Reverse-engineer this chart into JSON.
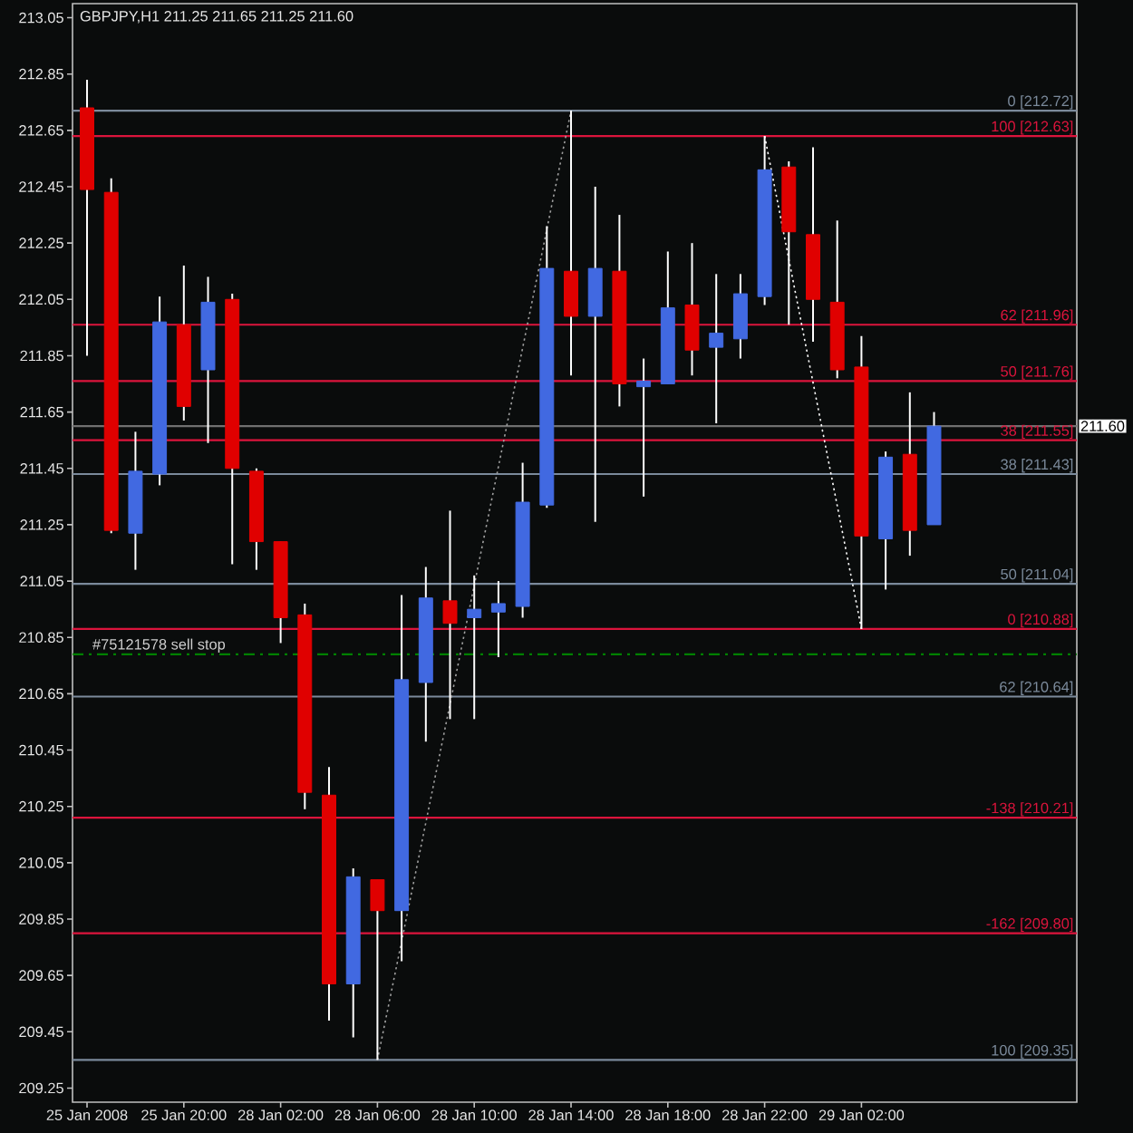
{
  "chart_data": {
    "type": "candlestick",
    "title": "GBPJPY,H1 211.25 211.65 211.25 211.60",
    "categories": [
      "25 Jan 2008",
      null,
      null,
      null,
      "25 Jan 20:00",
      null,
      null,
      null,
      "28 Jan 02:00",
      null,
      null,
      null,
      "28 Jan 06:00",
      null,
      null,
      null,
      "28 Jan 10:00",
      null,
      null,
      null,
      "28 Jan 14:00",
      null,
      null,
      null,
      "28 Jan 18:00",
      null,
      null,
      null,
      "28 Jan 22:00",
      null,
      null,
      null,
      "29 Jan 02:00",
      null,
      null,
      null
    ],
    "ohlc": [
      [
        212.73,
        212.83,
        211.85,
        212.44
      ],
      [
        212.43,
        212.48,
        211.22,
        211.23
      ],
      [
        211.22,
        211.58,
        211.09,
        211.44
      ],
      [
        211.43,
        212.06,
        211.39,
        211.97
      ],
      [
        211.96,
        212.17,
        211.62,
        211.67
      ],
      [
        211.8,
        212.13,
        211.54,
        212.04
      ],
      [
        212.05,
        212.07,
        211.11,
        211.45
      ],
      [
        211.44,
        211.45,
        211.09,
        211.19
      ],
      [
        211.19,
        211.19,
        210.83,
        210.92
      ],
      [
        210.93,
        210.97,
        210.24,
        210.3
      ],
      [
        210.29,
        210.39,
        209.49,
        209.62
      ],
      [
        209.62,
        210.03,
        209.43,
        210.0
      ],
      [
        209.99,
        209.99,
        209.35,
        209.88
      ],
      [
        209.88,
        211.0,
        209.7,
        210.7
      ],
      [
        210.69,
        211.1,
        210.48,
        210.99
      ],
      [
        210.98,
        211.3,
        210.56,
        210.9
      ],
      [
        210.92,
        211.07,
        210.56,
        210.95
      ],
      [
        210.94,
        211.05,
        210.78,
        210.97
      ],
      [
        210.96,
        211.47,
        210.92,
        211.33
      ],
      [
        211.32,
        212.31,
        211.31,
        212.16
      ],
      [
        212.15,
        212.72,
        211.78,
        211.99
      ],
      [
        211.99,
        212.45,
        211.26,
        212.16
      ],
      [
        212.15,
        212.35,
        211.67,
        211.75
      ],
      [
        211.74,
        211.84,
        211.35,
        211.76
      ],
      [
        211.75,
        212.22,
        211.75,
        212.02
      ],
      [
        212.03,
        212.25,
        211.78,
        211.87
      ],
      [
        211.88,
        212.14,
        211.61,
        211.93
      ],
      [
        211.91,
        212.14,
        211.84,
        212.07
      ],
      [
        212.06,
        212.63,
        212.03,
        212.51
      ],
      [
        212.52,
        212.54,
        211.96,
        212.29
      ],
      [
        212.28,
        212.59,
        211.9,
        212.05
      ],
      [
        212.04,
        212.33,
        211.77,
        211.8
      ],
      [
        211.81,
        211.92,
        210.88,
        211.21
      ],
      [
        211.2,
        211.51,
        211.02,
        211.49
      ],
      [
        211.5,
        211.72,
        211.14,
        211.23
      ],
      [
        211.25,
        211.65,
        211.25,
        211.6
      ]
    ],
    "colors": [
      "#e00000",
      "#e00000",
      "#4169e1",
      "#4169e1",
      "#e00000",
      "#4169e1",
      "#e00000",
      "#e00000",
      "#e00000",
      "#e00000",
      "#e00000",
      "#4169e1",
      "#e00000",
      "#4169e1",
      "#4169e1",
      "#e00000",
      "#4169e1",
      "#4169e1",
      "#4169e1",
      "#4169e1",
      "#e00000",
      "#4169e1",
      "#e00000",
      "#4169e1",
      "#4169e1",
      "#e00000",
      "#4169e1",
      "#4169e1",
      "#4169e1",
      "#e00000",
      "#e00000",
      "#e00000",
      "#e00000",
      "#4169e1",
      "#e00000",
      "#4169e1"
    ],
    "ylim": [
      209.2,
      213.1
    ],
    "yticks": [
      209.25,
      209.45,
      209.65,
      209.85,
      210.05,
      210.25,
      210.45,
      210.65,
      210.85,
      211.05,
      211.25,
      211.45,
      211.65,
      211.85,
      212.05,
      212.25,
      212.45,
      212.65,
      212.85,
      213.05
    ],
    "series": [
      {
        "type": "line",
        "x": [
          "28 Jan 06:00",
          "28 Jan 14:00"
        ],
        "values": [
          209.35,
          212.72
        ],
        "color": "#a0a0a0",
        "line_style": "dotted"
      },
      {
        "type": "line",
        "x": [
          "28 Jan 22:00",
          "29 Jan 02:00"
        ],
        "values": [
          212.63,
          210.88
        ],
        "color": "#ffffff",
        "line_style": "dotted"
      }
    ],
    "ref_lines": [
      {
        "axis": "y",
        "value": 212.72,
        "label": "0 [212.72]",
        "color": "#7b8a9b"
      },
      {
        "axis": "y",
        "value": 211.43,
        "label": "38 [211.43]",
        "color": "#7b8a9b"
      },
      {
        "axis": "y",
        "value": 211.04,
        "label": "50 [211.04]",
        "color": "#7b8a9b"
      },
      {
        "axis": "y",
        "value": 210.64,
        "label": "62 [210.64]",
        "color": "#7b8a9b"
      },
      {
        "axis": "y",
        "value": 209.35,
        "label": "100 [209.35]",
        "color": "#7b8a9b"
      },
      {
        "axis": "y",
        "value": 212.63,
        "label": "100 [212.63]",
        "color": "#dc143c"
      },
      {
        "axis": "y",
        "value": 211.96,
        "label": "62 [211.96]",
        "color": "#dc143c"
      },
      {
        "axis": "y",
        "value": 211.76,
        "label": "50 [211.76]",
        "color": "#dc143c"
      },
      {
        "axis": "y",
        "value": 211.55,
        "label": "38 [211.55]",
        "color": "#dc143c"
      },
      {
        "axis": "y",
        "value": 210.88,
        "label": "0 [210.88]",
        "color": "#dc143c"
      },
      {
        "axis": "y",
        "value": 210.21,
        "label": "-138 [210.21]",
        "color": "#dc143c"
      },
      {
        "axis": "y",
        "value": 209.8,
        "label": "-162 [209.80]",
        "color": "#dc143c"
      },
      {
        "axis": "y",
        "value": 211.6,
        "label": "211.60",
        "color": "#707070"
      },
      {
        "axis": "y",
        "value": 210.79,
        "color": "#008000",
        "line_style": "dashdot"
      }
    ],
    "annotations": [
      {
        "text": "#75121578 sell stop",
        "x": "25 Jan 2008",
        "y": 210.79
      }
    ]
  }
}
